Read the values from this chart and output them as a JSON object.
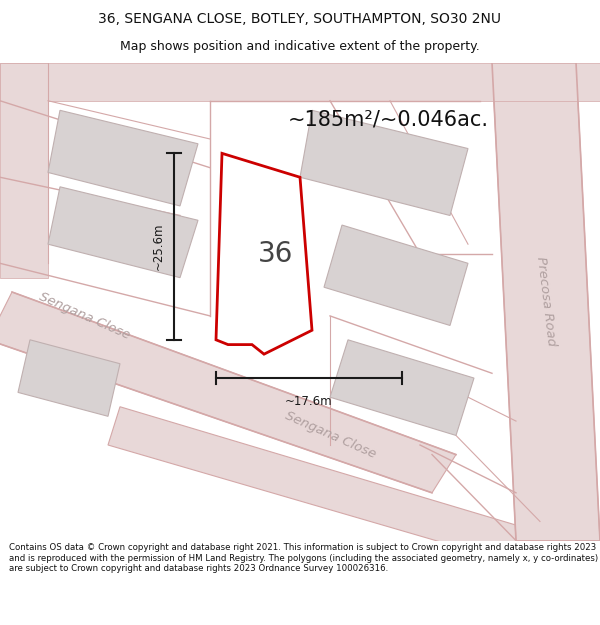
{
  "title_line1": "36, SENGANA CLOSE, BOTLEY, SOUTHAMPTON, SO30 2NU",
  "title_line2": "Map shows position and indicative extent of the property.",
  "area_label": "~185m²/~0.046ac.",
  "plot_number": "36",
  "dim_vertical": "~25.6m",
  "dim_horizontal": "~17.6m",
  "street_label_left": "Sengana Close",
  "street_label_bottom": "Sengana Close",
  "street_label_precosa": "Precosa Road",
  "footer_text": "Contains OS data © Crown copyright and database right 2021. This information is subject to Crown copyright and database rights 2023 and is reproduced with the permission of HM Land Registry. The polygons (including the associated geometry, namely x, y co-ordinates) are subject to Crown copyright and database rights 2023 Ordnance Survey 100026316.",
  "map_bg": "#f2eeee",
  "road_fill": "#e8d8d8",
  "road_edge": "#d4a8a8",
  "building_fill": "#d8d2d2",
  "building_edge": "#c0b0b0",
  "plot_outline_color": "#cc0000",
  "plot_fill_color": "#ffffff",
  "dim_line_color": "#1a1a1a",
  "title_color": "#111111",
  "footer_color": "#111111",
  "street_color": "#b0a0a0",
  "area_label_color": "#111111",
  "plot_num_color": "#444444"
}
